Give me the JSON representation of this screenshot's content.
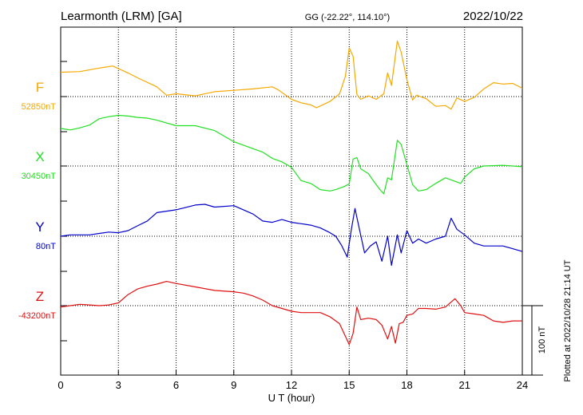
{
  "header": {
    "station": "Learmonth (LRM)  [GA]",
    "coords": "GG (-22.22°, 114.10°)",
    "date": "2022/10/22"
  },
  "footer": {
    "plotted_at": "Plotted at 2022/10/28 21:14 UT"
  },
  "chart_data": {
    "type": "line",
    "title": "Learmonth (LRM)  [GA]",
    "xlabel": "U T (hour)",
    "xlim": [
      0,
      24
    ],
    "xticks": [
      0,
      3,
      6,
      9,
      12,
      15,
      18,
      21,
      24
    ],
    "xtick_labels": [
      "0",
      "3",
      "6",
      "9",
      "12",
      "15",
      "18",
      "21",
      "24"
    ],
    "scale_bar_label": "100 nT",
    "scale_bar_nT": 100,
    "grid": true,
    "units": "nT",
    "series": [
      {
        "name": "F",
        "baseline_label": "52850nT",
        "baseline_nT": 52850,
        "color": "#f5a800",
        "x": [
          0,
          1,
          2,
          2.7,
          3.5,
          4,
          5,
          5.5,
          6,
          7,
          8,
          9,
          10,
          11,
          11.3,
          12,
          12.5,
          13,
          13.3,
          14,
          14.5,
          14.8,
          15,
          15.2,
          15.4,
          15.6,
          16,
          16.4,
          16.8,
          17,
          17.2,
          17.5,
          17.7,
          18,
          18.3,
          18.5,
          19,
          19.5,
          20,
          20.3,
          20.6,
          21,
          21.5,
          22,
          22.5,
          23,
          23.5,
          24
        ],
        "y": [
          35,
          36,
          41,
          44,
          34,
          27,
          14,
          2,
          4,
          1,
          7,
          9,
          11,
          14,
          10,
          -4,
          -9,
          -12,
          -16,
          -7,
          4,
          29,
          70,
          58,
          3,
          -4,
          1,
          -4,
          4,
          34,
          16,
          80,
          64,
          24,
          -5,
          2,
          -3,
          -14,
          -13,
          -18,
          -2,
          -7,
          -1,
          11,
          20,
          18,
          19,
          12
        ]
      },
      {
        "name": "X",
        "baseline_label": "30450nT",
        "baseline_nT": 30450,
        "color": "#22e022",
        "x": [
          0,
          0.5,
          1,
          1.5,
          2,
          2.5,
          3,
          3.5,
          4,
          4.5,
          5,
          6,
          7,
          8,
          9,
          9.5,
          10,
          10.5,
          11,
          11.5,
          12,
          12.5,
          13,
          13.5,
          14,
          14.3,
          14.7,
          15,
          15.2,
          15.4,
          15.6,
          16,
          16.3,
          16.6,
          16.8,
          17,
          17.2,
          17.5,
          17.7,
          18,
          18.3,
          18.6,
          19,
          19.5,
          20,
          20.4,
          20.8,
          21,
          21.5,
          22,
          23,
          24
        ],
        "y": [
          54,
          52,
          55,
          59,
          68,
          71,
          73,
          72,
          70,
          69,
          66,
          58,
          58,
          51,
          35,
          30,
          25,
          20,
          11,
          6,
          -2,
          -21,
          -25,
          -34,
          -36,
          -34,
          -30,
          -26,
          10,
          12,
          -4,
          -11,
          -23,
          -34,
          -40,
          -17,
          -20,
          37,
          31,
          2,
          -27,
          -36,
          -34,
          -25,
          -17,
          -21,
          -25,
          -16,
          -4,
          0,
          1,
          -1
        ]
      },
      {
        "name": "Y",
        "baseline_label": "80nT",
        "baseline_nT": 80,
        "color": "#0000cc",
        "x": [
          0,
          0.5,
          1,
          1.5,
          2,
          2.5,
          3,
          3.5,
          4,
          4.5,
          5,
          6,
          7,
          7.5,
          8,
          9,
          9.5,
          10,
          10.5,
          11,
          11.5,
          12,
          12.5,
          13,
          13.5,
          14,
          14.3,
          14.6,
          14.9,
          15.1,
          15.3,
          15.5,
          15.8,
          16.1,
          16.4,
          16.7,
          17,
          17.2,
          17.5,
          17.7,
          18,
          18.3,
          18.6,
          19,
          19.5,
          20,
          20.3,
          20.6,
          21,
          21.5,
          22,
          23,
          24
        ],
        "y": [
          0,
          2,
          2,
          2,
          4,
          6,
          5,
          8,
          15,
          22,
          34,
          38,
          45,
          46,
          42,
          44,
          38,
          32,
          22,
          20,
          24,
          20,
          18,
          16,
          12,
          5,
          0,
          -13,
          -30,
          8,
          40,
          14,
          -24,
          -14,
          -8,
          -36,
          0,
          -42,
          2,
          -24,
          8,
          -10,
          -4,
          -10,
          -4,
          0,
          26,
          10,
          2,
          -10,
          -14,
          -14,
          -22
        ]
      },
      {
        "name": "Z",
        "baseline_label": "-43200nT",
        "baseline_nT": -43200,
        "color": "#e01010",
        "x": [
          0,
          0.5,
          1,
          1.5,
          2,
          2.5,
          3,
          3.5,
          4,
          4.5,
          5,
          5.5,
          6,
          7,
          8,
          9,
          9.5,
          10,
          10.5,
          11,
          11.5,
          12,
          12.5,
          13,
          13.5,
          14,
          14.5,
          15,
          15.2,
          15.4,
          15.6,
          16,
          16.4,
          16.7,
          17,
          17.2,
          17.4,
          17.6,
          17.8,
          18,
          18.3,
          18.6,
          19,
          19.5,
          20,
          20.5,
          20.8,
          21,
          21.5,
          22,
          22.5,
          23,
          23.5,
          24
        ],
        "y": [
          -2,
          0,
          2,
          1,
          0,
          1,
          4,
          16,
          24,
          28,
          31,
          35,
          32,
          27,
          22,
          20,
          18,
          14,
          8,
          0,
          -4,
          -8,
          -10,
          -10,
          -10,
          -16,
          -26,
          -56,
          -40,
          -2,
          -20,
          -18,
          -20,
          -28,
          -48,
          -30,
          -54,
          -26,
          -24,
          -14,
          -12,
          -4,
          -4,
          -5,
          -2,
          10,
          0,
          -10,
          -12,
          -14,
          -22,
          -24,
          -22,
          -22
        ]
      }
    ]
  }
}
